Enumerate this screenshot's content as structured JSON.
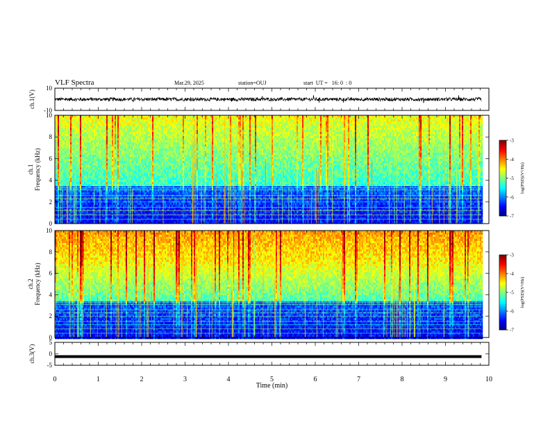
{
  "header": {
    "title": "VLF Spectra",
    "date": "Mar.29, 2025",
    "station": "station=OUJ",
    "start_ut": "start  UT =   16: 0  : 0"
  },
  "chart_data": [
    {
      "type": "line",
      "panel": "ch1-waveform",
      "ylabel": "ch.1(V)",
      "ylim": [
        -10,
        10
      ],
      "yticks": [
        "10",
        "-10"
      ],
      "series": [
        {
          "baseline": 0,
          "amplitude_approx": 1.5
        }
      ]
    },
    {
      "type": "heatmap",
      "panel": "ch1-spectrogram",
      "ylabel": [
        "ch.1",
        "Frequency (kHz)"
      ],
      "ylim": [
        0,
        10
      ],
      "yticks": [
        "0",
        "2",
        "4",
        "6",
        "8",
        "10"
      ],
      "xlim": [
        0,
        10
      ],
      "colorbar": {
        "label": "log(PSD)(V²/Hz)",
        "ticks": [
          "-3",
          "-4",
          "-5",
          "-6",
          "-7"
        ],
        "range": [
          -7,
          -3
        ]
      },
      "notes": "Dark blue below ~3.5 kHz with horizontal line interference; green/cyan above 4 kHz with vertical impulsive spikes."
    },
    {
      "type": "heatmap",
      "panel": "ch2-spectrogram",
      "ylabel": [
        "ch.2",
        "Frequency (kHz)"
      ],
      "ylim": [
        0,
        10
      ],
      "yticks": [
        "0",
        "2",
        "4",
        "6",
        "8",
        "10"
      ],
      "xlim": [
        0,
        10
      ],
      "colorbar": {
        "label": "log(PSD)(V²/Hz)",
        "ticks": [
          "-3",
          "-4",
          "-5",
          "-6",
          "-7"
        ],
        "range": [
          -7,
          -3
        ]
      },
      "notes": "Yellow/red above ~7 kHz, green 4-7 kHz, blue below ~3.5 kHz with vertical spikes."
    },
    {
      "type": "line",
      "panel": "ch3-waveform",
      "ylabel": "ch.3(V)",
      "ylim": [
        -5,
        5
      ],
      "yticks": [
        "5",
        "0",
        "-5"
      ],
      "series": [
        {
          "constant": -1.2
        }
      ]
    }
  ],
  "x_axis": {
    "label": "Time  (min)",
    "ticks": [
      "0",
      "1",
      "2",
      "3",
      "4",
      "5",
      "6",
      "7",
      "8",
      "9",
      "10"
    ],
    "range": [
      0,
      10
    ],
    "data_end_min": 9.83
  },
  "colors": {
    "colormap": [
      "#00007f",
      "#0000ff",
      "#0080ff",
      "#00ffff",
      "#80ff80",
      "#ffff00",
      "#ff8000",
      "#ff0000",
      "#7f0000"
    ]
  }
}
